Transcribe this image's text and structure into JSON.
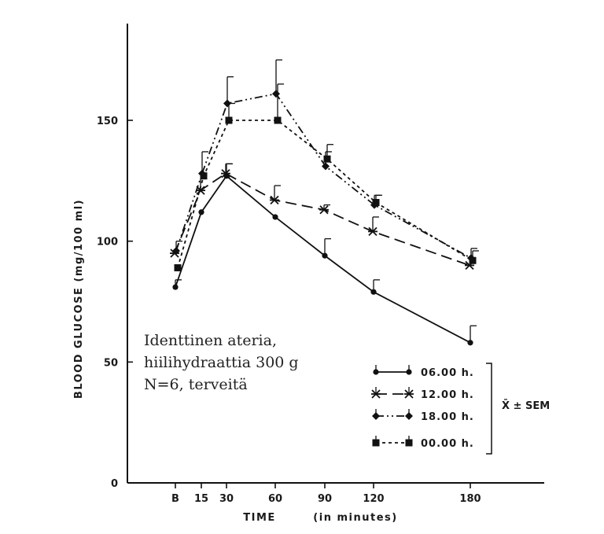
{
  "chart_data": {
    "type": "line",
    "ylabel": "BLOOD GLUCOSE (mg/100 ml)",
    "xlabel_main": "TIME",
    "xlabel_unit": "(in minutes)",
    "x": [
      "B",
      15,
      30,
      60,
      90,
      120,
      180
    ],
    "x_tick_labels": [
      "B",
      "15",
      "30",
      "60",
      "90",
      "120",
      "180"
    ],
    "y_ticks": [
      0,
      50,
      100,
      150
    ],
    "y_tick_labels": [
      "0",
      "50",
      "100",
      "150"
    ],
    "ylim": [
      0,
      190
    ],
    "grid": false,
    "series": [
      {
        "name": "06.00 h.",
        "style": "solid",
        "marker": "circle",
        "values": [
          81,
          112,
          127,
          110,
          94,
          79,
          58
        ],
        "sem": [
          3,
          0,
          5,
          0,
          7,
          5,
          7
        ]
      },
      {
        "name": "12.00 h.",
        "style": "dashed",
        "marker": "star",
        "values": [
          95,
          121,
          128,
          117,
          113,
          104,
          90
        ],
        "sem": [
          0,
          5,
          4,
          6,
          2,
          6,
          0
        ]
      },
      {
        "name": "18.00 h.",
        "style": "dashdotdot",
        "marker": "diamond",
        "values": [
          96,
          128,
          157,
          161,
          131,
          115,
          93
        ],
        "sem": [
          4,
          9,
          11,
          14,
          6,
          4,
          4
        ]
      },
      {
        "name": "00.00 h.",
        "style": "dotted",
        "marker": "square",
        "values": [
          89,
          127,
          150,
          150,
          134,
          116,
          92
        ],
        "sem": [
          0,
          0,
          7,
          15,
          6,
          3,
          4
        ]
      }
    ],
    "annotation_lines": [
      "Identtinen ateria,",
      "hiilihydraattia 300 g",
      "N=6, terveitä"
    ],
    "legend_note": "X̄ ± SEM",
    "legend_position": "bottom-right"
  }
}
